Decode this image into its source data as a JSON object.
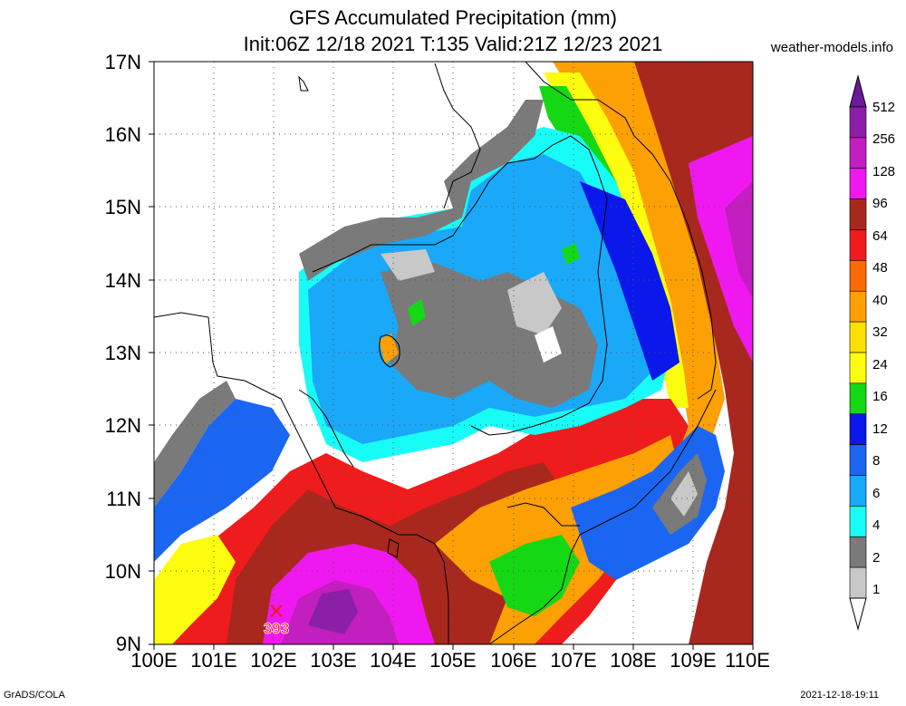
{
  "header": {
    "title_line1": "GFS Accumulated Precipitation (mm)",
    "title_line2": "Init:06Z 12/18 2021 T:135 Valid:21Z 12/23 2021",
    "site": "weather-models.info"
  },
  "footer": {
    "left": "GrADS/COLA",
    "right": "2021-12-18-19:11"
  },
  "axes": {
    "lat_labels": [
      "17N",
      "16N",
      "15N",
      "14N",
      "13N",
      "12N",
      "11N",
      "10N",
      "9N"
    ],
    "lon_labels": [
      "100E",
      "101E",
      "102E",
      "103E",
      "104E",
      "105E",
      "106E",
      "107E",
      "108E",
      "109E",
      "110E"
    ]
  },
  "legend": {
    "labels": [
      "512",
      "256",
      "128",
      "96",
      "64",
      "48",
      "40",
      "32",
      "24",
      "16",
      "12",
      "8",
      "6",
      "4",
      "2",
      "1"
    ],
    "colors": [
      "#6a1a9a",
      "#8c1fa8",
      "#c21ec0",
      "#f018f0",
      "#a8281e",
      "#ee1c1c",
      "#fb6a04",
      "#fca004",
      "#fce004",
      "#fbfc0e",
      "#14d814",
      "#0a18ec",
      "#1a66f2",
      "#1aa8f8",
      "#18fcf8",
      "#7a7a7a",
      "#c8c8c8",
      "#ffffff"
    ]
  },
  "marker": {
    "label": "393",
    "symbol": "×"
  }
}
